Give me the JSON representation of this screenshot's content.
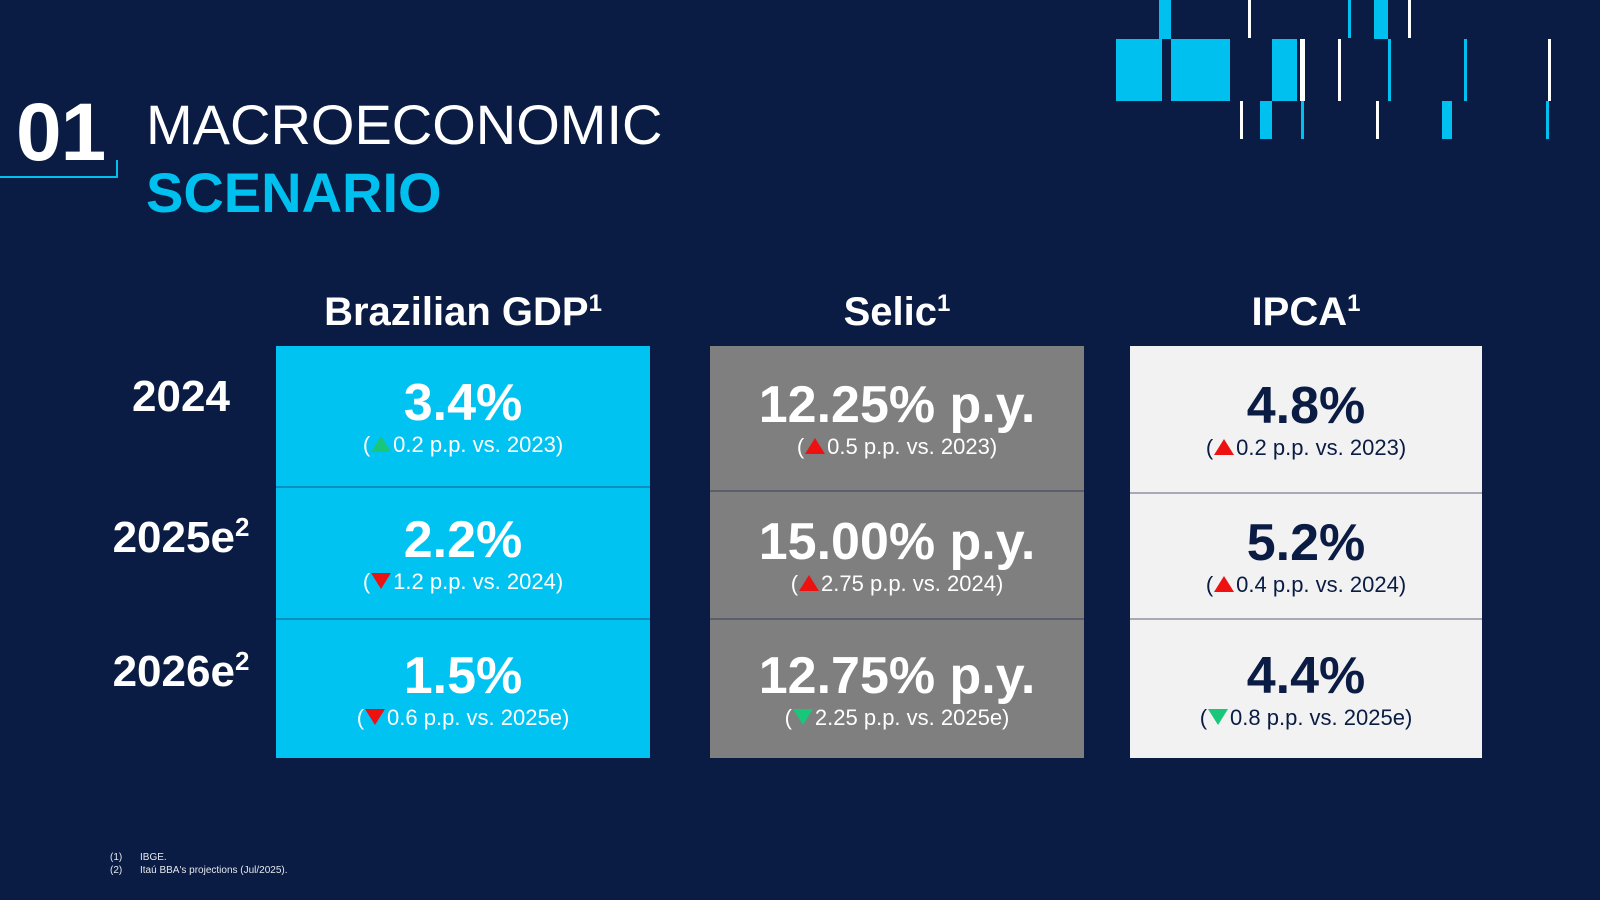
{
  "section": {
    "number": "01",
    "title_line1": "MACROECONOMIC",
    "title_line2": "SCENARIO"
  },
  "colors": {
    "background": "#0a1c43",
    "accent": "#00c0f0",
    "gdp_panel": "#00c3f2",
    "selic_panel": "#7f7f7f",
    "ipca_panel": "#f2f2f2",
    "up_arrow_red": "#ee1111",
    "down_arrow_green": "#18c77a"
  },
  "columns": [
    {
      "name": "Brazilian GDP",
      "footnote": "1"
    },
    {
      "name": "Selic",
      "footnote": "1"
    },
    {
      "name": "IPCA",
      "footnote": "1"
    }
  ],
  "rows": [
    {
      "year": "2024",
      "footnote": ""
    },
    {
      "year": "2025e",
      "footnote": "2"
    },
    {
      "year": "2026e",
      "footnote": "2"
    }
  ],
  "table": {
    "gdp": [
      {
        "value": "3.4%",
        "change": "0.2 p.p. vs. 2023)",
        "arrow": "up-green-icon"
      },
      {
        "value": "2.2%",
        "change": "1.2 p.p. vs. 2024)",
        "arrow": "down-red-icon"
      },
      {
        "value": "1.5%",
        "change": "0.6 p.p. vs. 2025e)",
        "arrow": "down-red-icon"
      }
    ],
    "selic": [
      {
        "value": "12.25% p.y.",
        "change": "0.5 p.p. vs. 2023)",
        "arrow": "up-red-icon"
      },
      {
        "value": "15.00% p.y.",
        "change": "2.75 p.p. vs. 2024)",
        "arrow": "up-red-icon"
      },
      {
        "value": "12.75% p.y.",
        "change": "2.25 p.p. vs. 2025e)",
        "arrow": "down-green-icon"
      }
    ],
    "ipca": [
      {
        "value": "4.8%",
        "change": "0.2 p.p. vs. 2023)",
        "arrow": "up-red-icon"
      },
      {
        "value": "5.2%",
        "change": "0.4 p.p. vs. 2024)",
        "arrow": "up-red-icon"
      },
      {
        "value": "4.4%",
        "change": "0.8 p.p. vs. 2025e)",
        "arrow": "down-green-icon"
      }
    ],
    "open_paren": "("
  },
  "footnotes": [
    {
      "num": "(1)",
      "text": "IBGE."
    },
    {
      "num": "(2)",
      "text": "Itaú BBA's projections (Jul/2025)."
    }
  ]
}
